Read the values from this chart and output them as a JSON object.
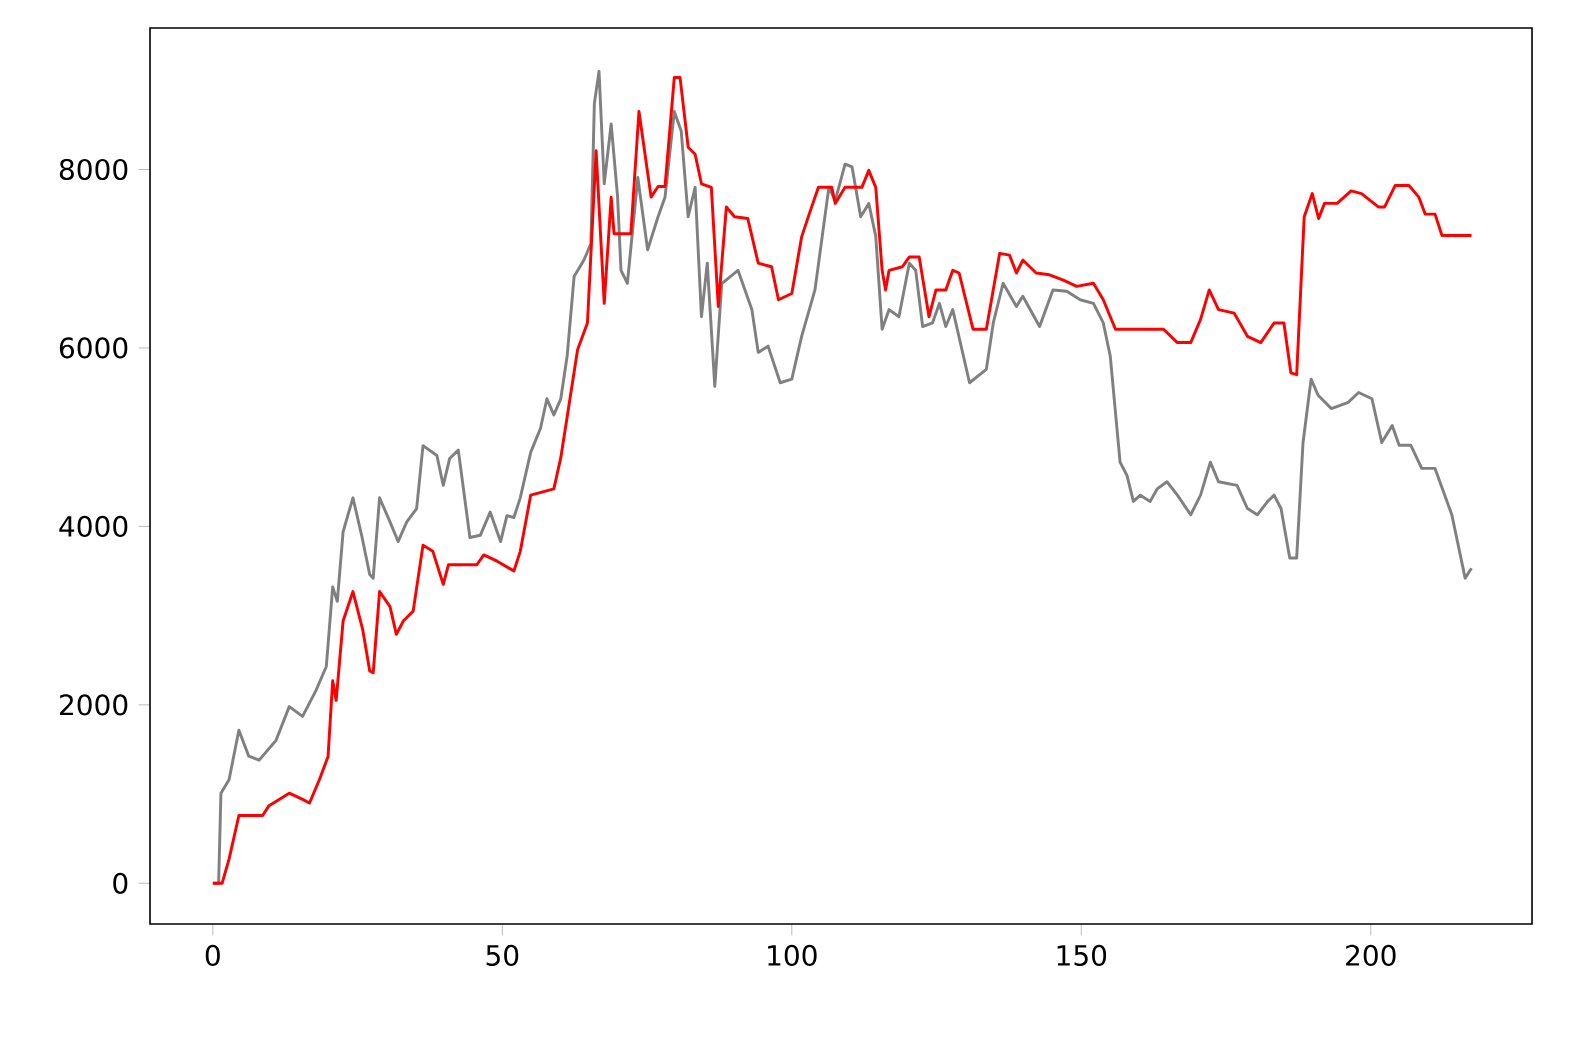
{
  "chart_data": {
    "type": "line",
    "xlim": [
      -10.85,
      227.85
    ],
    "ylim": [
      -456,
      9586
    ],
    "xticks": [
      0,
      50,
      100,
      150,
      200
    ],
    "yticks": [
      0,
      2000,
      4000,
      6000,
      8000
    ],
    "grid": false,
    "marker": "none",
    "line_style": "solid",
    "series": [
      {
        "color": "#808080",
        "x": [
          0,
          1,
          1.4,
          2.8,
          4.5,
          6.2,
          8,
          10.9,
          13.2,
          15.5,
          17.8,
          19.6,
          20.7,
          21.5,
          22.5,
          24.2,
          25.7,
          27.1,
          27.7,
          28.8,
          30.6,
          32,
          33.5,
          35.2,
          36.3,
          38.7,
          39.8,
          40.9,
          42.4,
          44.4,
          46.2,
          47.9,
          49.7,
          50.8,
          52,
          53.1,
          54.9,
          56.6,
          57.7,
          58.9,
          60.1,
          61.2,
          62.4,
          64.1,
          65.3,
          65.9,
          66.7,
          67.6,
          68.8,
          69.9,
          70.5,
          71.6,
          73.4,
          75.1,
          76.9,
          78.1,
          79.7,
          80.9,
          82.1,
          83.3,
          84.4,
          85.4,
          86.7,
          87.9,
          90.7,
          93.1,
          94.2,
          95.9,
          98,
          100,
          101.7,
          104,
          106.4,
          107.5,
          109.2,
          110.4,
          111.9,
          113.3,
          114.5,
          115.6,
          116.8,
          118.5,
          120.3,
          121.4,
          122.6,
          124.3,
          125.5,
          126.6,
          127.8,
          130.7,
          133.6,
          134.8,
          136.5,
          138.8,
          139.9,
          142.8,
          145.1,
          147.5,
          149.8,
          152.1,
          153.8,
          155,
          156.7,
          157.9,
          159,
          160.2,
          161.9,
          163.1,
          164.8,
          166.6,
          168.9,
          170.6,
          172.3,
          173.7,
          176.9,
          178.7,
          180.4,
          182.2,
          183.3,
          184.5,
          186,
          187.2,
          188.3,
          189.7,
          190.9,
          193.2,
          196.1,
          197.9,
          200.2,
          201.9,
          203.7,
          204.9,
          206.9,
          208.8,
          211.1,
          214,
          216.3,
          217.4
        ],
        "values": [
          0,
          0,
          1010,
          1160,
          1715,
          1425,
          1380,
          1600,
          1980,
          1870,
          2160,
          2430,
          3320,
          3160,
          3940,
          4320,
          3900,
          3460,
          3420,
          4320,
          4050,
          3830,
          4050,
          4200,
          4905,
          4795,
          4460,
          4760,
          4855,
          3875,
          3900,
          4160,
          3830,
          4120,
          4100,
          4320,
          4830,
          5100,
          5430,
          5250,
          5430,
          5910,
          6800,
          6985,
          7170,
          8740,
          9100,
          7840,
          8510,
          7700,
          6870,
          6725,
          7910,
          7100,
          7470,
          7690,
          8650,
          8430,
          7470,
          7800,
          6350,
          6950,
          5570,
          6720,
          6870,
          6430,
          5950,
          6020,
          5610,
          5650,
          6130,
          6650,
          7800,
          7650,
          8060,
          8030,
          7470,
          7620,
          7250,
          6210,
          6430,
          6350,
          6950,
          6870,
          6240,
          6280,
          6500,
          6240,
          6430,
          5610,
          5760,
          6280,
          6725,
          6465,
          6580,
          6240,
          6650,
          6635,
          6540,
          6500,
          6280,
          5910,
          4720,
          4570,
          4280,
          4350,
          4280,
          4420,
          4500,
          4350,
          4130,
          4350,
          4720,
          4500,
          4460,
          4200,
          4130,
          4280,
          4350,
          4200,
          3645,
          3645,
          4940,
          5650,
          5470,
          5320,
          5390,
          5500,
          5430,
          4940,
          5130,
          4910,
          4910,
          4650,
          4650,
          4130,
          3420,
          3530
        ]
      },
      {
        "color": "#ff0000",
        "x": [
          0,
          1.6,
          2.8,
          4.5,
          8.6,
          9.7,
          13.2,
          15.5,
          16.7,
          18.4,
          19.9,
          20.7,
          21.3,
          22.5,
          24.2,
          25.9,
          27.1,
          27.7,
          28.8,
          30.6,
          31.7,
          32.9,
          34.6,
          36.3,
          38,
          39.8,
          40.7,
          45.6,
          46.8,
          49.1,
          52,
          53.1,
          54.9,
          58.9,
          60.1,
          63,
          64.7,
          66.2,
          67.6,
          68.8,
          69.3,
          72.2,
          73.6,
          75.7,
          76.9,
          78.1,
          79.7,
          80.7,
          82.1,
          83.3,
          84.4,
          86.1,
          87.3,
          88.7,
          90.1,
          92.4,
          94.2,
          96.5,
          97.7,
          100,
          101.7,
          102.9,
          104.6,
          106.9,
          107.5,
          109.2,
          112.1,
          113.3,
          114.5,
          115.6,
          116.2,
          116.8,
          119.1,
          120.3,
          122,
          123.7,
          124.9,
          126.6,
          127.8,
          128.9,
          131.3,
          133.6,
          135.9,
          137.6,
          138.8,
          139.9,
          142.2,
          144.5,
          146.9,
          149.2,
          152.1,
          153.8,
          155.9,
          164.2,
          166.6,
          168.9,
          170.6,
          172.1,
          173.7,
          176.4,
          178.7,
          181,
          183.3,
          185,
          186.2,
          187.2,
          188.5,
          189.9,
          191,
          192,
          194.2,
          196.6,
          198.4,
          201.3,
          202.4,
          204.2,
          206.6,
          208.3,
          209.4,
          211.1,
          212.3,
          217.4
        ],
        "values": [
          0,
          0,
          270,
          760,
          760,
          870,
          1010,
          940,
          900,
          1160,
          1420,
          2270,
          2050,
          2940,
          3270,
          2840,
          2380,
          2360,
          3270,
          3100,
          2790,
          2940,
          3050,
          3790,
          3720,
          3350,
          3570,
          3570,
          3680,
          3610,
          3500,
          3720,
          4350,
          4420,
          4770,
          5980,
          6280,
          8210,
          6500,
          7690,
          7280,
          7280,
          8650,
          7690,
          7810,
          7810,
          9030,
          9030,
          8250,
          8170,
          7840,
          7800,
          6465,
          7580,
          7470,
          7450,
          6950,
          6910,
          6540,
          6610,
          7245,
          7480,
          7800,
          7800,
          7620,
          7800,
          7800,
          7990,
          7800,
          6870,
          6650,
          6870,
          6910,
          7020,
          7020,
          6350,
          6650,
          6650,
          6870,
          6840,
          6210,
          6210,
          7060,
          7040,
          6840,
          6985,
          6840,
          6820,
          6760,
          6690,
          6725,
          6540,
          6210,
          6210,
          6060,
          6060,
          6320,
          6650,
          6430,
          6390,
          6130,
          6060,
          6280,
          6280,
          5720,
          5700,
          7470,
          7730,
          7450,
          7620,
          7620,
          7760,
          7730,
          7580,
          7580,
          7820,
          7820,
          7690,
          7500,
          7500,
          7260,
          7260
        ]
      }
    ]
  }
}
